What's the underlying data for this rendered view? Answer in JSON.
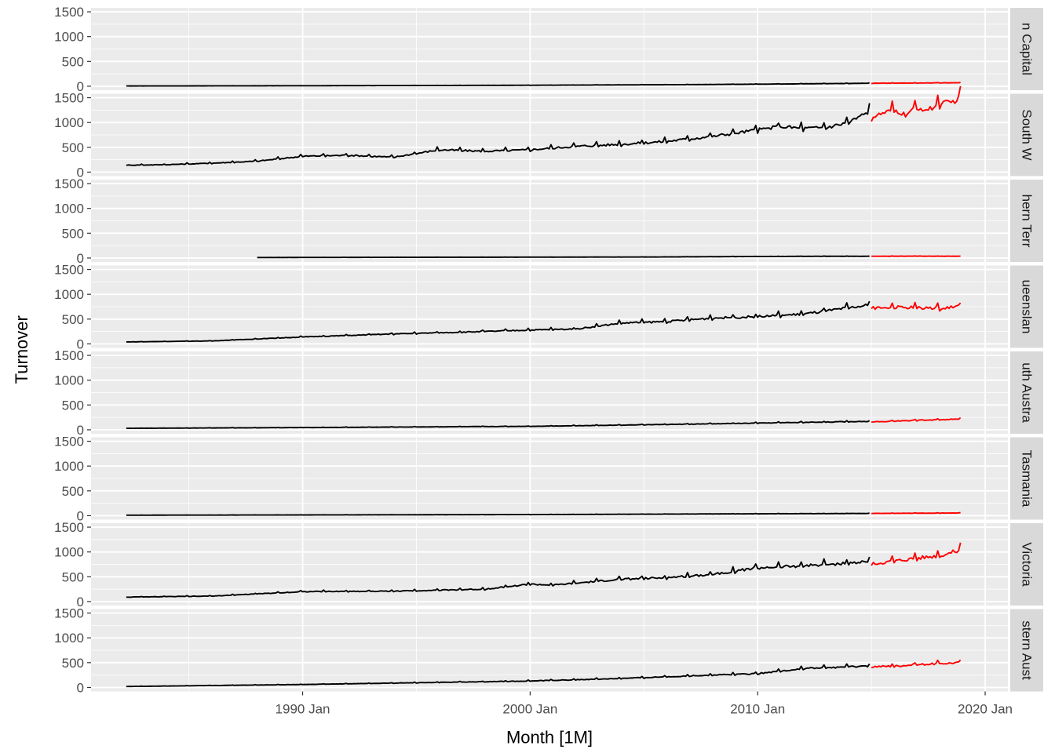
{
  "chart_data": {
    "type": "line",
    "xlabel": "Month [1M]",
    "ylabel": "Turnover",
    "x_ticks": [
      "1990 Jan",
      "2000 Jan",
      "2010 Jan",
      "2020 Jan"
    ],
    "y_ticks": [
      "0",
      "500",
      "1000",
      "1500"
    ],
    "ylim": [
      0,
      1500
    ],
    "xlim": [
      "1982-04",
      "2018-12"
    ],
    "legend": "none",
    "grid": true,
    "colors": {
      "history": "#000000",
      "forecast": "#ff0000",
      "panel_bg": "#ebebeb",
      "strip_bg": "#d9d9d9",
      "grid": "#ffffff"
    },
    "facets": [
      {
        "label": "n Capital",
        "history": {
          "start": "1982-04",
          "end": "2014-12",
          "points": [
            [
              1982.3,
              5
            ],
            [
              1990,
              10
            ],
            [
              2000,
              20
            ],
            [
              2008,
              35
            ],
            [
              2014.9,
              60
            ]
          ]
        },
        "forecast": {
          "start": "2015-01",
          "end": "2018-12",
          "points": [
            [
              2015.0,
              60
            ],
            [
              2017,
              65
            ],
            [
              2018.9,
              70
            ]
          ]
        }
      },
      {
        "label": "South W",
        "history": {
          "start": "1982-04",
          "end": "2014-12",
          "points": [
            [
              1982.3,
              140
            ],
            [
              1984,
              150
            ],
            [
              1986,
              180
            ],
            [
              1988,
              220
            ],
            [
              1990,
              320
            ],
            [
              1992,
              340
            ],
            [
              1994,
              300
            ],
            [
              1996,
              450
            ],
            [
              1998,
              420
            ],
            [
              2000,
              450
            ],
            [
              2002,
              520
            ],
            [
              2004,
              560
            ],
            [
              2006,
              620
            ],
            [
              2008,
              720
            ],
            [
              2010,
              850
            ],
            [
              2011,
              920
            ],
            [
              2012,
              880
            ],
            [
              2013,
              900
            ],
            [
              2014,
              1000
            ],
            [
              2014.9,
              1220
            ]
          ]
        },
        "forecast": {
          "start": "2015-01",
          "end": "2018-12",
          "points": [
            [
              2015.0,
              1100
            ],
            [
              2015.5,
              1180
            ],
            [
              2016,
              1250
            ],
            [
              2016.5,
              1150
            ],
            [
              2017,
              1300
            ],
            [
              2017.5,
              1250
            ],
            [
              2018,
              1380
            ],
            [
              2018.5,
              1400
            ],
            [
              2018.9,
              1500
            ]
          ]
        }
      },
      {
        "label": "hern Terr",
        "history": {
          "start": "1988-01",
          "end": "2014-12",
          "points": [
            [
              1988.0,
              10
            ],
            [
              1995,
              15
            ],
            [
              2005,
              20
            ],
            [
              2012,
              35
            ],
            [
              2014.9,
              35
            ]
          ]
        },
        "forecast": {
          "start": "2015-01",
          "end": "2018-12",
          "points": [
            [
              2015.0,
              35
            ],
            [
              2017,
              38
            ],
            [
              2018.9,
              35
            ]
          ]
        }
      },
      {
        "label": "ueenslan",
        "history": {
          "start": "1982-04",
          "end": "2014-12",
          "points": [
            [
              1982.3,
              40
            ],
            [
              1986,
              60
            ],
            [
              1990,
              140
            ],
            [
              1994,
              200
            ],
            [
              1998,
              250
            ],
            [
              2000,
              280
            ],
            [
              2002,
              300
            ],
            [
              2004,
              420
            ],
            [
              2006,
              450
            ],
            [
              2008,
              520
            ],
            [
              2010,
              550
            ],
            [
              2012,
              600
            ],
            [
              2014.9,
              780
            ]
          ]
        },
        "forecast": {
          "start": "2015-01",
          "end": "2018-12",
          "points": [
            [
              2015.0,
              720
            ],
            [
              2016,
              740
            ],
            [
              2017,
              730
            ],
            [
              2018,
              720
            ],
            [
              2018.9,
              760
            ]
          ]
        }
      },
      {
        "label": "uth Austra",
        "history": {
          "start": "1982-04",
          "end": "2014-12",
          "points": [
            [
              1982.3,
              30
            ],
            [
              1990,
              45
            ],
            [
              2000,
              70
            ],
            [
              2008,
              120
            ],
            [
              2014.9,
              170
            ]
          ]
        },
        "forecast": {
          "start": "2015-01",
          "end": "2018-12",
          "points": [
            [
              2015.0,
              160
            ],
            [
              2017,
              190
            ],
            [
              2018.9,
              215
            ]
          ]
        }
      },
      {
        "label": "Tasmania",
        "history": {
          "start": "1982-04",
          "end": "2014-12",
          "points": [
            [
              1982.3,
              10
            ],
            [
              1990,
              15
            ],
            [
              2000,
              22
            ],
            [
              2008,
              35
            ],
            [
              2014.9,
              45
            ]
          ]
        },
        "forecast": {
          "start": "2015-01",
          "end": "2018-12",
          "points": [
            [
              2015.0,
              45
            ],
            [
              2017,
              50
            ],
            [
              2018.9,
              55
            ]
          ]
        }
      },
      {
        "label": "Victoria",
        "history": {
          "start": "1982-04",
          "end": "2014-12",
          "points": [
            [
              1982.3,
              90
            ],
            [
              1986,
              110
            ],
            [
              1990,
              200
            ],
            [
              1994,
              210
            ],
            [
              1998,
              250
            ],
            [
              2000,
              350
            ],
            [
              2001,
              330
            ],
            [
              2004,
              450
            ],
            [
              2006,
              480
            ],
            [
              2008,
              550
            ],
            [
              2010,
              680
            ],
            [
              2012,
              720
            ],
            [
              2014.9,
              800
            ]
          ]
        },
        "forecast": {
          "start": "2015-01",
          "end": "2018-12",
          "points": [
            [
              2015.0,
              760
            ],
            [
              2016,
              820
            ],
            [
              2017,
              880
            ],
            [
              2018,
              930
            ],
            [
              2018.9,
              1040
            ]
          ]
        }
      },
      {
        "label": "stern Aust",
        "history": {
          "start": "1982-04",
          "end": "2014-12",
          "points": [
            [
              1982.3,
              20
            ],
            [
              1990,
              60
            ],
            [
              2000,
              130
            ],
            [
              2004,
              180
            ],
            [
              2008,
              250
            ],
            [
              2010,
              280
            ],
            [
              2012,
              380
            ],
            [
              2014.9,
              430
            ]
          ]
        },
        "forecast": {
          "start": "2015-01",
          "end": "2018-12",
          "points": [
            [
              2015.0,
              420
            ],
            [
              2016,
              430
            ],
            [
              2017,
              460
            ],
            [
              2018,
              480
            ],
            [
              2018.9,
              500
            ]
          ]
        }
      }
    ]
  }
}
